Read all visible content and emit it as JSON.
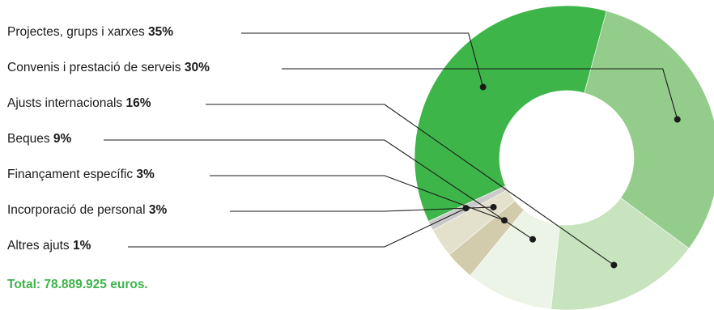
{
  "chart_data": {
    "type": "pie",
    "donut": true,
    "categories": [
      "Projectes, grups i xarxes",
      "Convenis i prestació de serveis",
      "Ajusts internacionals",
      "Beques",
      "Finançament específic",
      "Incorporació de personal",
      "Altres ajuts"
    ],
    "values": [
      35,
      30,
      16,
      9,
      3,
      3,
      1
    ],
    "value_labels": [
      "35%",
      "30%",
      "16%",
      "9%",
      "3%",
      "3%",
      "1%"
    ],
    "colors": [
      "#3db549",
      "#94cc8b",
      "#c8e4bf",
      "#ebf4e6",
      "#d3ccac",
      "#e3e1cc",
      "#cacaca"
    ],
    "legend": "left",
    "total_label": "Total: 78.889.925 euros."
  }
}
